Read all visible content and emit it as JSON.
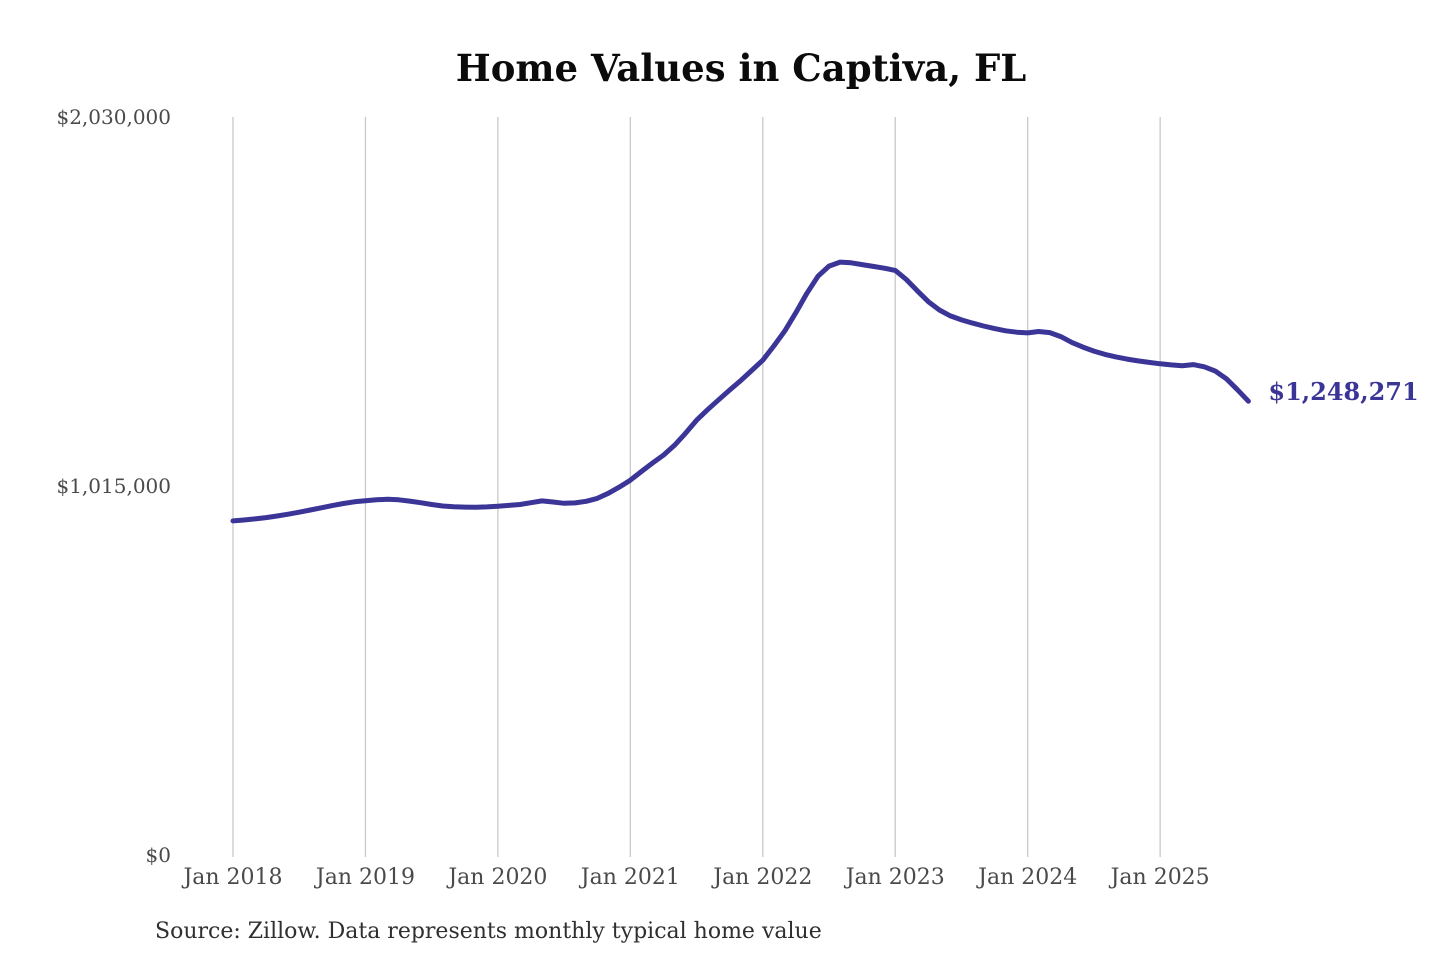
{
  "colors": {
    "line": "#3b3597",
    "grid": "#c9c9c9",
    "axis_text": "#4a4a4a",
    "title_text": "#0b0b0b",
    "source_text": "#2f2f2f",
    "background": "#ffffff"
  },
  "source_note": "Source: Zillow. Data represents monthly typical home value",
  "chart_data": {
    "type": "line",
    "title": "Home Values in Captiva, FL",
    "xlabel": "",
    "ylabel": "",
    "legend": "none",
    "grid": "vertical-only",
    "ylim": [
      0,
      2030000
    ],
    "y_ticks": [
      0,
      1015000,
      2030000
    ],
    "y_tick_labels": [
      "$0",
      "$1,015,000",
      "$2,030,000"
    ],
    "x_tick_labels": [
      "Jan 2018",
      "Jan 2019",
      "Jan 2020",
      "Jan 2021",
      "Jan 2022",
      "Jan 2023",
      "Jan 2024",
      "Jan 2025"
    ],
    "latest_value": 1248271,
    "latest_value_label": "$1,248,271",
    "series": [
      {
        "name": "Monthly typical home value (USD)",
        "start_month": "Jan 2018",
        "end_month": "Sep 2025",
        "frequency": "monthly",
        "values": [
          919000,
          921500,
          924500,
          928000,
          932500,
          937500,
          943000,
          949000,
          955000,
          961000,
          967000,
          971500,
          974500,
          977000,
          978500,
          977000,
          973500,
          969000,
          964000,
          960000,
          958000,
          957000,
          956500,
          957500,
          959500,
          961500,
          964000,
          969000,
          974000,
          971000,
          967500,
          968500,
          973000,
          981000,
          995000,
          1012000,
          1031000,
          1055000,
          1078000,
          1100000,
          1127000,
          1160000,
          1196000,
          1225000,
          1252000,
          1279000,
          1305000,
          1333000,
          1361000,
          1400000,
          1442000,
          1492000,
          1545000,
          1592000,
          1620000,
          1631000,
          1629000,
          1624000,
          1619000,
          1614000,
          1608000,
          1583000,
          1552000,
          1522000,
          1499000,
          1483000,
          1472000,
          1463000,
          1455000,
          1448000,
          1442000,
          1438000,
          1436000,
          1440000,
          1437000,
          1426000,
          1410000,
          1397000,
          1386000,
          1377000,
          1370000,
          1364000,
          1359000,
          1355000,
          1351000,
          1348000,
          1346000,
          1349000,
          1343000,
          1331000,
          1310000,
          1280000,
          1248271
        ]
      }
    ]
  }
}
